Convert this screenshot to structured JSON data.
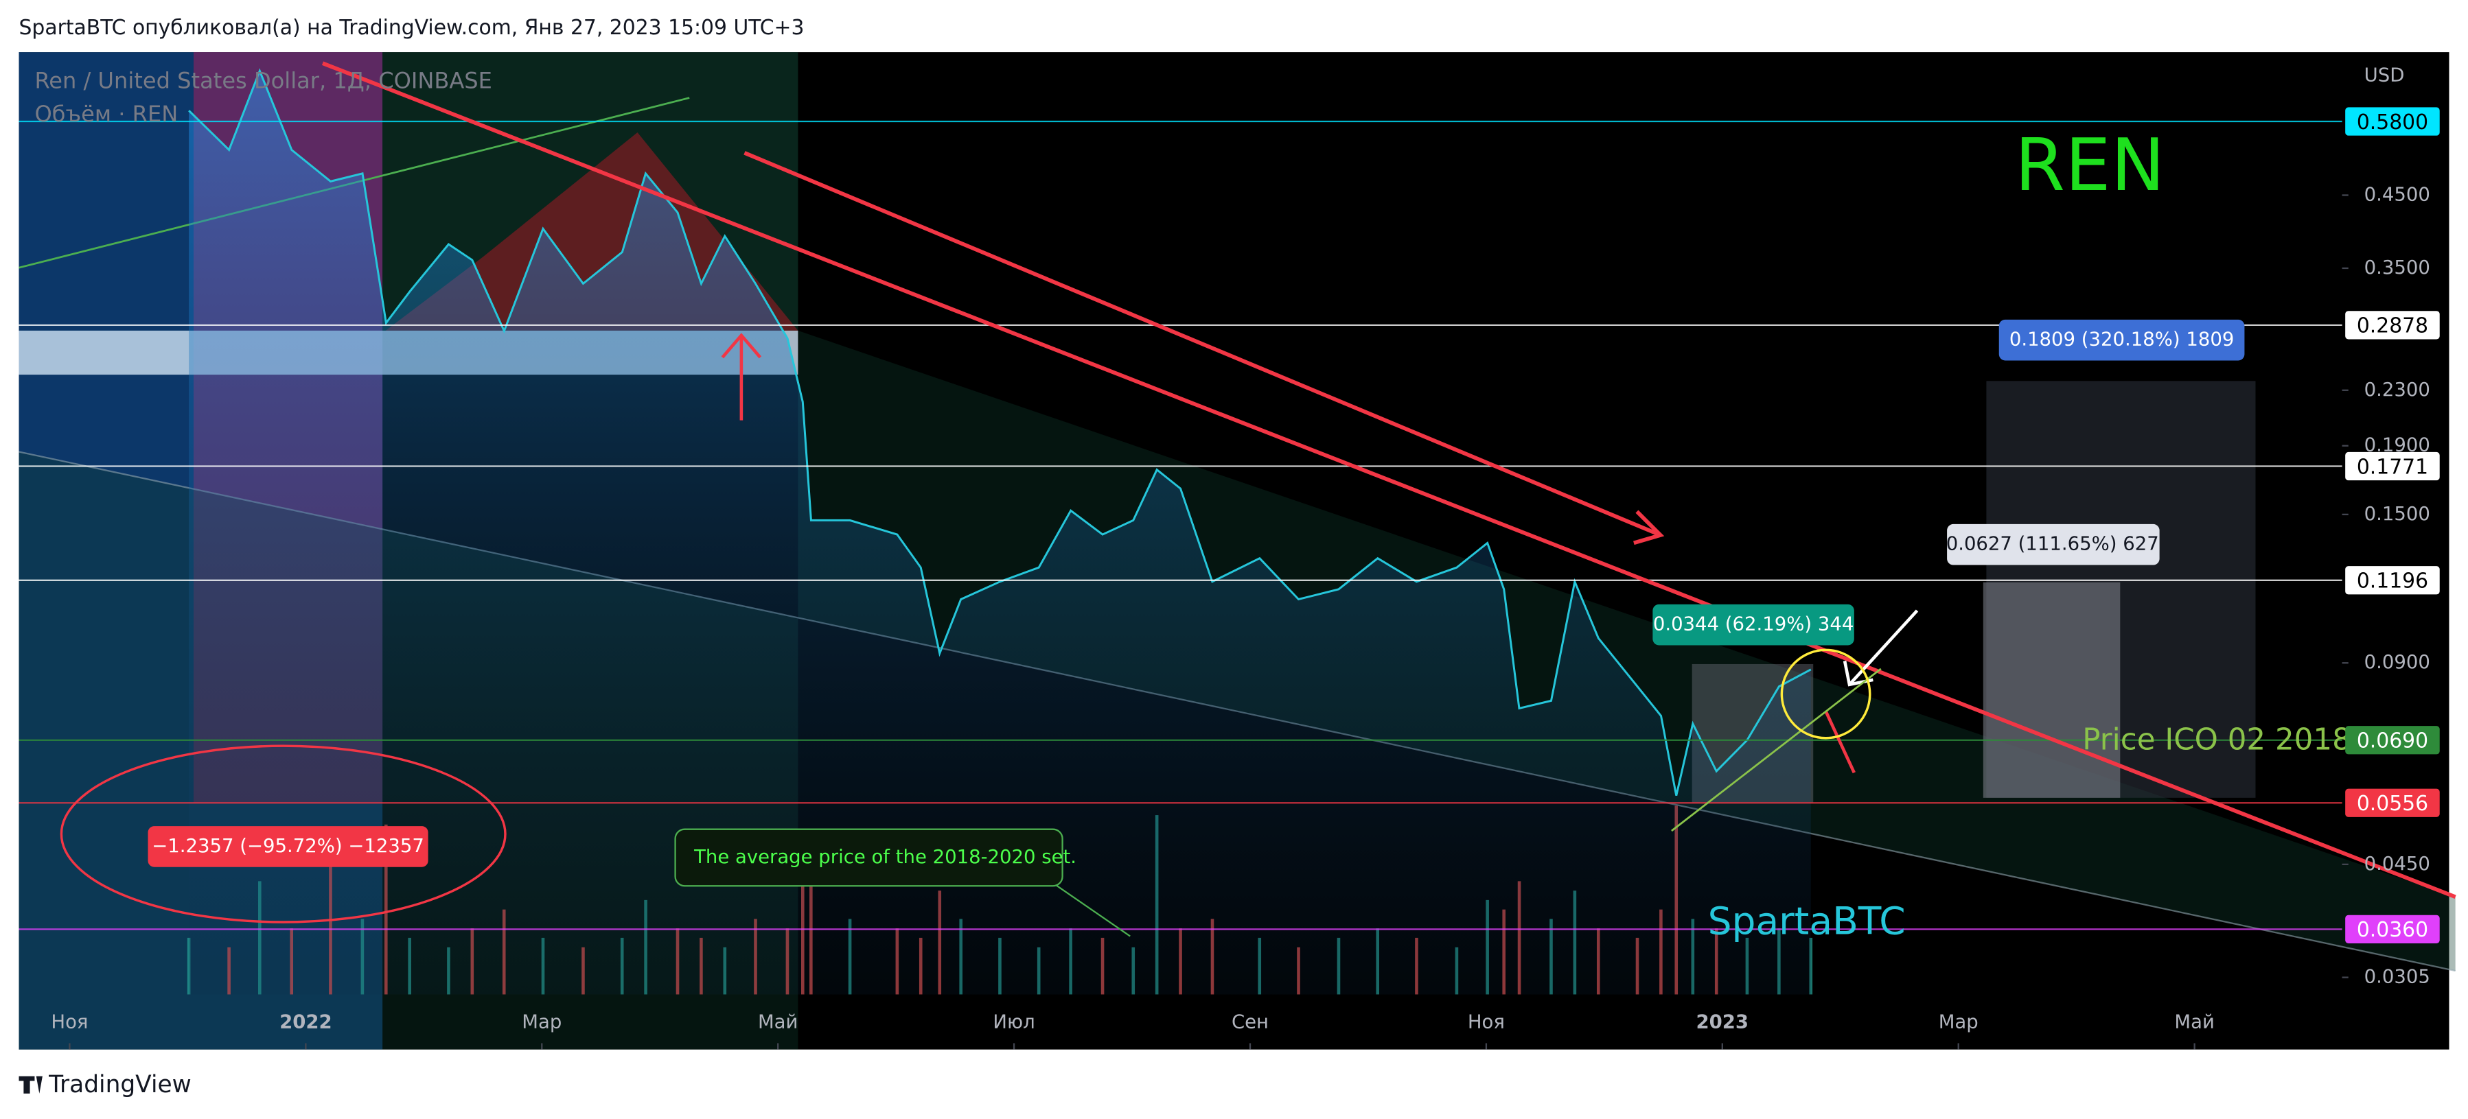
{
  "header": {
    "title": "SpartaBTC опубликовал(а) на TradingView.com, Янв 27, 2023 15:09 UTC+3"
  },
  "footer": {
    "brand": "TradingView"
  },
  "chart_data": {
    "type": "line",
    "title": "Ren / United States Dollar, 1Д, COINBASE",
    "subtitle": "Объём · REN",
    "y_unit": "USD",
    "log_scale": true,
    "xlim": [
      -0.43,
      19.25
    ],
    "xticks": [
      {
        "value": 0,
        "label": "Ноя"
      },
      {
        "value": 2,
        "label": "2022"
      },
      {
        "value": 4,
        "label": "Мар"
      },
      {
        "value": 6,
        "label": "Май"
      },
      {
        "value": 8,
        "label": "Июл"
      },
      {
        "value": 10,
        "label": "Сен"
      },
      {
        "value": 12,
        "label": "Ноя"
      },
      {
        "value": 14,
        "label": "2023"
      },
      {
        "value": 16,
        "label": "Мар"
      },
      {
        "value": 18,
        "label": "Май"
      }
    ],
    "ylim": [
      0.0238,
      0.736
    ],
    "yticks": [
      {
        "value": 0.45,
        "label": "0.4500"
      },
      {
        "value": 0.35,
        "label": "0.3500"
      },
      {
        "value": 0.23,
        "label": "0.2300"
      },
      {
        "value": 0.19,
        "label": "0.1900"
      },
      {
        "value": 0.15,
        "label": "0.1500"
      },
      {
        "value": 0.09,
        "label": "0.0900"
      },
      {
        "value": 0.045,
        "label": "0.0450"
      },
      {
        "value": 0.0305,
        "label": "0.0305"
      }
    ],
    "levels": [
      {
        "value": 0.58,
        "label": "0.5800",
        "color": "#00e5ff",
        "text_color": "#000000"
      },
      {
        "value": 0.2878,
        "label": "0.2878",
        "color": "#ffffff",
        "text_color": "#000000"
      },
      {
        "value": 0.1771,
        "label": "0.1771",
        "color": "#ffffff",
        "text_color": "#000000"
      },
      {
        "value": 0.1196,
        "label": "0.1196",
        "color": "#ffffff",
        "text_color": "#000000"
      },
      {
        "value": 0.069,
        "label": "0.0690",
        "color": "#2e8b3a",
        "text_color": "#ffffff"
      },
      {
        "value": 0.0556,
        "label": "0.0556",
        "color": "#f23645",
        "text_color": "#ffffff"
      },
      {
        "value": 0.036,
        "label": "0.0360",
        "color": "#e040fb",
        "text_color": "#ffffff"
      }
    ],
    "series": [
      {
        "name": "REN",
        "color": "#26c6da",
        "x": [
          1.01,
          1.35,
          1.61,
          1.88,
          2.21,
          2.48,
          2.68,
          2.88,
          3.21,
          3.41,
          3.68,
          4.01,
          4.35,
          4.68,
          4.88,
          5.15,
          5.35,
          5.55,
          5.81,
          6.08,
          6.21,
          6.28,
          6.61,
          7.01,
          7.21,
          7.37,
          7.55,
          7.88,
          8.21,
          8.48,
          8.75,
          9.01,
          9.21,
          9.41,
          9.68,
          10.08,
          10.41,
          10.75,
          11.08,
          11.41,
          11.75,
          12.01,
          12.15,
          12.28,
          12.55,
          12.75,
          12.95,
          13.28,
          13.48,
          13.61,
          13.75,
          13.95,
          14.21,
          14.48,
          14.75
        ],
        "values": [
          0.602,
          0.526,
          0.69,
          0.526,
          0.472,
          0.485,
          0.29,
          0.323,
          0.38,
          0.36,
          0.282,
          0.401,
          0.332,
          0.37,
          0.485,
          0.424,
          0.332,
          0.391,
          0.332,
          0.275,
          0.221,
          0.147,
          0.147,
          0.14,
          0.125,
          0.093,
          0.112,
          0.119,
          0.125,
          0.152,
          0.14,
          0.147,
          0.175,
          0.164,
          0.119,
          0.129,
          0.112,
          0.116,
          0.129,
          0.119,
          0.125,
          0.136,
          0.116,
          0.077,
          0.079,
          0.119,
          0.098,
          0.083,
          0.075,
          0.057,
          0.073,
          0.062,
          0.069,
          0.083,
          0.088
        ],
        "volume": [
          30,
          25,
          60,
          35,
          80,
          40,
          90,
          30,
          25,
          35,
          45,
          30,
          25,
          30,
          50,
          35,
          30,
          25,
          40,
          35,
          60,
          85,
          40,
          35,
          30,
          55,
          40,
          30,
          25,
          35,
          30,
          25,
          95,
          35,
          40,
          30,
          25,
          30,
          35,
          30,
          25,
          50,
          45,
          60,
          40,
          55,
          35,
          30,
          45,
          100,
          40,
          35,
          30,
          35,
          30
        ]
      }
    ],
    "annotations": {
      "label_ren": "REN",
      "label_author": "SpartaBTC",
      "label_ico": "Price ICO 02 2018",
      "note_average": "The average price of the 2018-2020 set.",
      "measure_drop": "−1.2357 (−95.72%) −12357",
      "measure_target": "0.1809 (320.18%) 1809",
      "measure_mid": "0.0627 (111.65%) 627",
      "measure_now": "0.0344 (62.19%) 344"
    }
  }
}
